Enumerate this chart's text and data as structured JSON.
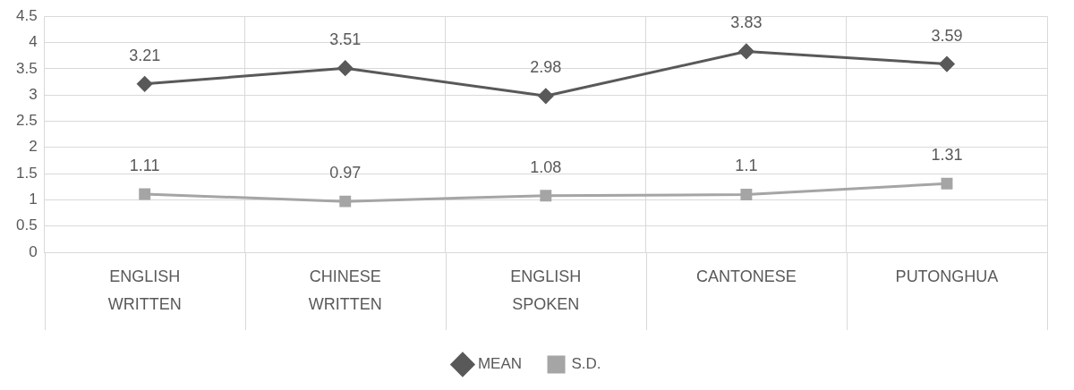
{
  "chart_data": {
    "type": "line",
    "categories": [
      "ENGLISH\nWRITTEN",
      "CHINESE\nWRITTEN",
      "ENGLISH\nSPOKEN",
      "CANTONESE",
      "PUTONGHUA"
    ],
    "series": [
      {
        "name": "MEAN",
        "color": "#595959",
        "marker": "diamond",
        "values": [
          3.21,
          3.51,
          2.98,
          3.83,
          3.59
        ]
      },
      {
        "name": "S.D.",
        "color": "#a5a5a5",
        "marker": "square",
        "values": [
          1.11,
          0.97,
          1.08,
          1.1,
          1.31
        ]
      }
    ],
    "ylim": [
      0,
      4.5
    ],
    "yticks": [
      0,
      0.5,
      1,
      1.5,
      2,
      2.5,
      3,
      3.5,
      4,
      4.5
    ],
    "grid": true,
    "legend": "bottom",
    "data_labels": true,
    "line_style": "solid"
  }
}
